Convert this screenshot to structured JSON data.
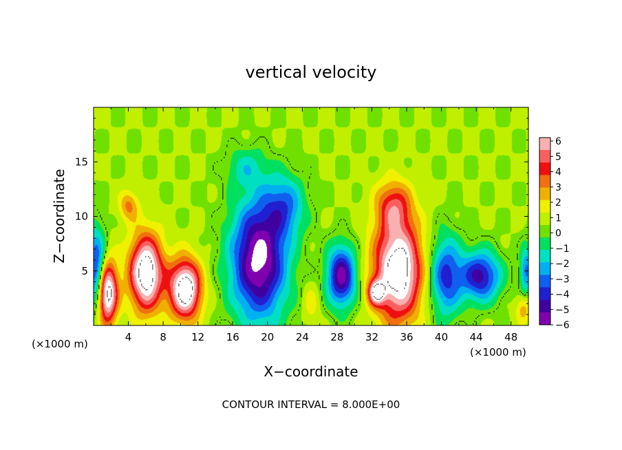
{
  "chart_data": {
    "type": "heatmap",
    "title": "vertical velocity",
    "xlabel": "X−coordinate",
    "ylabel": "Z−coordinate",
    "x_unit_left": "(×1000 m)",
    "x_unit_right": "(×1000 m)",
    "xlim": [
      0,
      50
    ],
    "ylim": [
      0,
      20
    ],
    "x_ticks": [
      4,
      8,
      12,
      16,
      20,
      24,
      28,
      32,
      36,
      40,
      44,
      48
    ],
    "x_tick_labels": [
      "4",
      "8",
      "12",
      "16",
      "20",
      "24",
      "28",
      "32",
      "36",
      "40",
      "44",
      "48"
    ],
    "y_ticks": [
      5,
      10,
      15
    ],
    "y_tick_labels": [
      "5",
      "10",
      "15"
    ],
    "footer": "CONTOUR INTERVAL = 8.000E+00",
    "colorbar": {
      "tick_labels": [
        "6",
        "5",
        "4",
        "3",
        "2",
        "1",
        "0",
        "−1",
        "−2",
        "−3",
        "−4",
        "−5",
        "−6"
      ],
      "colors": [
        "#f8b0b0",
        "#f86060",
        "#ee1010",
        "#f07010",
        "#f0b000",
        "#f0f000",
        "#c0f000",
        "#70e000",
        "#00e060",
        "#00e0c0",
        "#00b0f0",
        "#1060f0",
        "#2020d0",
        "#4000a0",
        "#8000b0"
      ]
    },
    "background_value": 0.5,
    "features": [
      {
        "kind": "updraft",
        "x": 1.5,
        "z": 3.0,
        "rx": 1.3,
        "rz": 3.2,
        "peak": 9
      },
      {
        "kind": "updraft",
        "x": 6.0,
        "z": 4.8,
        "rx": 2.1,
        "rz": 3.8,
        "peak": 9
      },
      {
        "kind": "updraft",
        "x": 10.5,
        "z": 3.3,
        "rx": 2.0,
        "rz": 3.0,
        "peak": 9
      },
      {
        "kind": "updraft",
        "x": 35.0,
        "z": 5.0,
        "rx": 3.0,
        "rz": 5.0,
        "peak": 9
      },
      {
        "kind": "updraft",
        "x": 32.5,
        "z": 3.0,
        "rx": 1.0,
        "rz": 1.2,
        "peak": 6
      },
      {
        "kind": "updraft",
        "x": 34.5,
        "z": 11.0,
        "rx": 2.2,
        "rz": 2.5,
        "peak": 4
      },
      {
        "kind": "updraft",
        "x": 4.0,
        "z": 11.0,
        "rx": 1.2,
        "rz": 1.5,
        "peak": 3
      },
      {
        "kind": "updraft",
        "x": 25.0,
        "z": 2.0,
        "rx": 1.0,
        "rz": 2.0,
        "peak": 1.5
      },
      {
        "kind": "updraft",
        "x": 49.5,
        "z": 1.5,
        "rx": 1.0,
        "rz": 1.5,
        "peak": 2.5
      },
      {
        "kind": "downdraft",
        "x": 0.3,
        "z": 5.0,
        "rx": 1.2,
        "rz": 4.0,
        "peak": -6
      },
      {
        "kind": "downdraft",
        "x": 19.0,
        "z": 6.0,
        "rx": 3.5,
        "rz": 6.0,
        "peak": -8
      },
      {
        "kind": "downdraft",
        "x": 22.0,
        "z": 11.0,
        "rx": 2.5,
        "rz": 3.0,
        "peak": -3.5
      },
      {
        "kind": "downdraft",
        "x": 28.5,
        "z": 4.5,
        "rx": 1.8,
        "rz": 3.0,
        "peak": -7
      },
      {
        "kind": "downdraft",
        "x": 40.5,
        "z": 4.5,
        "rx": 2.0,
        "rz": 4.0,
        "peak": -5
      },
      {
        "kind": "downdraft",
        "x": 44.5,
        "z": 4.5,
        "rx": 2.5,
        "rz": 2.5,
        "peak": -6
      },
      {
        "kind": "downdraft",
        "x": 49.8,
        "z": 5.0,
        "rx": 0.8,
        "rz": 2.5,
        "peak": -4
      },
      {
        "kind": "downdraft",
        "x": 17.5,
        "z": 14.5,
        "rx": 2.5,
        "rz": 2.0,
        "peak": -2
      }
    ]
  }
}
